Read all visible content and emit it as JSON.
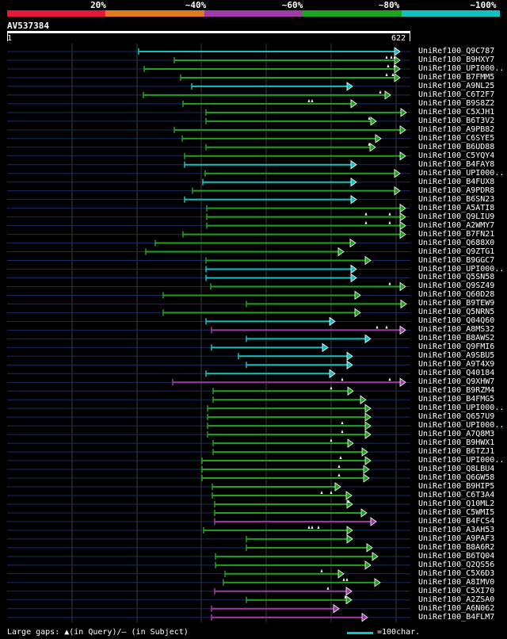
{
  "legend": {
    "labels": [
      "20%",
      "~40%",
      "~60%",
      "~80%",
      "~100%"
    ],
    "colors": [
      "#e8173a",
      "#e07a1e",
      "#a03aa8",
      "#1fa31f",
      "#12c1c1"
    ]
  },
  "query": {
    "name": "AV537384",
    "start": "1",
    "end": "622"
  },
  "footer": {
    "gaps_text": "Large gaps: ▲(in Query)/– (in Subject)",
    "scale_text": "=100char."
  },
  "hits": [
    {
      "label": "UniRef100_Q9C787",
      "start": 175,
      "end": 505,
      "color": "cyan",
      "marks": []
    },
    {
      "label": "UniRef100_B9HXY7",
      "start": 220,
      "end": 505,
      "color": "green",
      "marks": [
        488,
        494,
        498
      ]
    },
    {
      "label": "UniRef100_UPI000..",
      "start": 182,
      "end": 505,
      "color": "green",
      "marks": [
        490,
        498
      ]
    },
    {
      "label": "UniRef100_B7FMM5",
      "start": 228,
      "end": 505,
      "color": "green",
      "marks": [
        488,
        496
      ]
    },
    {
      "label": "UniRef100_A9NL25",
      "start": 242,
      "end": 445,
      "color": "cyan",
      "marks": []
    },
    {
      "label": "UniRef100_C6T2F7",
      "start": 181,
      "end": 493,
      "color": "green",
      "marks": [
        480
      ]
    },
    {
      "label": "UniRef100_B9S8Z2",
      "start": 231,
      "end": 450,
      "color": "green",
      "marks": [
        390,
        394
      ]
    },
    {
      "label": "UniRef100_C5XJH1",
      "start": 260,
      "end": 513,
      "color": "green",
      "marks": []
    },
    {
      "label": "UniRef100_B6T3V2",
      "start": 260,
      "end": 475,
      "color": "green",
      "marks": [
        466
      ]
    },
    {
      "label": "UniRef100_A9PB82",
      "start": 220,
      "end": 512,
      "color": "green",
      "marks": []
    },
    {
      "label": "UniRef100_C6SYE5",
      "start": 230,
      "end": 481,
      "color": "green",
      "marks": []
    },
    {
      "label": "UniRef100_B6UD88",
      "start": 260,
      "end": 474,
      "color": "green",
      "marks": [
        466
      ]
    },
    {
      "label": "UniRef100_C5YQY4",
      "start": 233,
      "end": 512,
      "color": "green",
      "marks": []
    },
    {
      "label": "UniRef100_B4FAY8",
      "start": 233,
      "end": 450,
      "color": "cyan",
      "marks": []
    },
    {
      "label": "UniRef100_UPI000..",
      "start": 259,
      "end": 505,
      "color": "green",
      "marks": []
    },
    {
      "label": "UniRef100_B4FUX8",
      "start": 256,
      "end": 450,
      "color": "cyan",
      "marks": []
    },
    {
      "label": "UniRef100_A9PDR8",
      "start": 243,
      "end": 505,
      "color": "green",
      "marks": []
    },
    {
      "label": "UniRef100_B6SN23",
      "start": 233,
      "end": 450,
      "color": "cyan",
      "marks": []
    },
    {
      "label": "UniRef100_A5ATI8",
      "start": 261,
      "end": 512,
      "color": "green",
      "marks": []
    },
    {
      "label": "UniRef100_Q9LIU9",
      "start": 261,
      "end": 512,
      "color": "green",
      "marks": [
        462,
        492
      ]
    },
    {
      "label": "UniRef100_A2WMY7",
      "start": 261,
      "end": 512,
      "color": "green",
      "marks": [
        462,
        492
      ]
    },
    {
      "label": "UniRef100_B7FN21",
      "start": 231,
      "end": 512,
      "color": "green",
      "marks": []
    },
    {
      "label": "UniRef100_Q688X0",
      "start": 196,
      "end": 449,
      "color": "green",
      "marks": []
    },
    {
      "label": "UniRef100_Q9ZTG1",
      "start": 184,
      "end": 434,
      "color": "green",
      "marks": []
    },
    {
      "label": "UniRef100_B9GGC7",
      "start": 260,
      "end": 468,
      "color": "green",
      "marks": []
    },
    {
      "label": "UniRef100_UPI000..",
      "start": 260,
      "end": 450,
      "color": "cyan",
      "marks": []
    },
    {
      "label": "UniRef100_Q5SN58",
      "start": 260,
      "end": 450,
      "color": "cyan",
      "marks": []
    },
    {
      "label": "UniRef100_Q9SZ49",
      "start": 266,
      "end": 512,
      "color": "green",
      "marks": [
        492
      ]
    },
    {
      "label": "UniRef100_Q60D28",
      "start": 206,
      "end": 455,
      "color": "green",
      "marks": []
    },
    {
      "label": "UniRef100_B9TEW9",
      "start": 311,
      "end": 513,
      "color": "green",
      "marks": []
    },
    {
      "label": "UniRef100_Q5NRN5",
      "start": 206,
      "end": 455,
      "color": "green",
      "marks": []
    },
    {
      "label": "UniRef100_Q04Q60",
      "start": 260,
      "end": 423,
      "color": "cyan",
      "marks": []
    },
    {
      "label": "UniRef100_A8MS32",
      "start": 267,
      "end": 512,
      "color": "purple",
      "marks": [
        476,
        488
      ]
    },
    {
      "label": "UniRef100_B8AWS2",
      "start": 311,
      "end": 468,
      "color": "cyan",
      "marks": []
    },
    {
      "label": "UniRef100_Q9FMI6",
      "start": 267,
      "end": 414,
      "color": "cyan",
      "marks": []
    },
    {
      "label": "UniRef100_A9SBU5",
      "start": 301,
      "end": 445,
      "color": "cyan",
      "marks": []
    },
    {
      "label": "UniRef100_A9T4X9",
      "start": 311,
      "end": 445,
      "color": "cyan",
      "marks": []
    },
    {
      "label": "UniRef100_Q40184",
      "start": 260,
      "end": 423,
      "color": "cyan",
      "marks": []
    },
    {
      "label": "UniRef100_Q9XHW7",
      "start": 218,
      "end": 512,
      "color": "purple",
      "marks": [
        432,
        492
      ]
    },
    {
      "label": "UniRef100_B9RZM4",
      "start": 269,
      "end": 446,
      "color": "green",
      "marks": [
        418
      ]
    },
    {
      "label": "UniRef100_B4FMG5",
      "start": 269,
      "end": 462,
      "color": "green",
      "marks": []
    },
    {
      "label": "UniRef100_UPI000..",
      "start": 262,
      "end": 468,
      "color": "green",
      "marks": []
    },
    {
      "label": "UniRef100_Q657U9",
      "start": 262,
      "end": 468,
      "color": "green",
      "marks": []
    },
    {
      "label": "UniRef100_UPI000..",
      "start": 262,
      "end": 468,
      "color": "green",
      "marks": [
        432
      ]
    },
    {
      "label": "UniRef100_A7Q8M3",
      "start": 262,
      "end": 468,
      "color": "green",
      "marks": [
        432
      ]
    },
    {
      "label": "UniRef100_B9HWX1",
      "start": 269,
      "end": 446,
      "color": "green",
      "marks": [
        418
      ]
    },
    {
      "label": "UniRef100_B6TZJ1",
      "start": 269,
      "end": 464,
      "color": "green",
      "marks": []
    },
    {
      "label": "UniRef100_UPI000..",
      "start": 255,
      "end": 468,
      "color": "green",
      "marks": [
        430
      ]
    },
    {
      "label": "UniRef100_Q8LBU4",
      "start": 255,
      "end": 466,
      "color": "green",
      "marks": [
        428
      ]
    },
    {
      "label": "UniRef100_Q6GW58",
      "start": 255,
      "end": 466,
      "color": "green",
      "marks": [
        428
      ]
    },
    {
      "label": "UniRef100_B9HIP5",
      "start": 268,
      "end": 430,
      "color": "green",
      "marks": []
    },
    {
      "label": "UniRef100_C6T3A4",
      "start": 268,
      "end": 444,
      "color": "green",
      "marks": [
        406,
        418
      ]
    },
    {
      "label": "UniRef100_Q10ML2",
      "start": 271,
      "end": 445,
      "color": "green",
      "marks": [
        440
      ]
    },
    {
      "label": "UniRef100_C5WMI5",
      "start": 271,
      "end": 463,
      "color": "green",
      "marks": []
    },
    {
      "label": "UniRef100_B4FCS4",
      "start": 271,
      "end": 475,
      "color": "purple",
      "marks": []
    },
    {
      "label": "UniRef100_A3AH53",
      "start": 257,
      "end": 445,
      "color": "green",
      "marks": [
        390,
        394,
        402
      ]
    },
    {
      "label": "UniRef100_A9PAF3",
      "start": 311,
      "end": 445,
      "color": "green",
      "marks": []
    },
    {
      "label": "UniRef100_B8A6R2",
      "start": 311,
      "end": 470,
      "color": "green",
      "marks": []
    },
    {
      "label": "UniRef100_B6TQ04",
      "start": 272,
      "end": 477,
      "color": "green",
      "marks": []
    },
    {
      "label": "UniRef100_Q2QS56",
      "start": 272,
      "end": 468,
      "color": "green",
      "marks": []
    },
    {
      "label": "UniRef100_C5X6D3",
      "start": 284,
      "end": 434,
      "color": "green",
      "marks": [
        406
      ]
    },
    {
      "label": "UniRef100_A8IMV0",
      "start": 282,
      "end": 480,
      "color": "green",
      "marks": [
        434,
        438
      ]
    },
    {
      "label": "UniRef100_C5XI70",
      "start": 271,
      "end": 444,
      "color": "purple",
      "marks": [
        414
      ]
    },
    {
      "label": "UniRef100_A2ZSA0",
      "start": 311,
      "end": 444,
      "color": "green",
      "marks": [
        436
      ]
    },
    {
      "label": "UniRef100_A6N062",
      "start": 267,
      "end": 428,
      "color": "purple",
      "marks": []
    },
    {
      "label": "UniRef100_B4FLM7",
      "start": 267,
      "end": 464,
      "color": "purple",
      "marks": []
    }
  ]
}
